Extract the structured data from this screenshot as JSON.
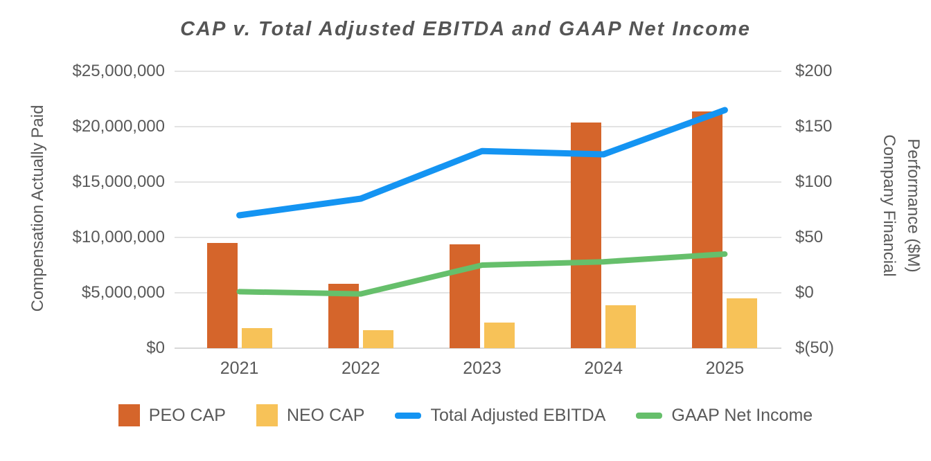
{
  "title": "CAP v. Total Adjusted EBITDA and GAAP Net Income",
  "colors": {
    "peo_bar": "#D5652B",
    "neo_bar": "#F7C258",
    "ebitda_line": "#1494F2",
    "gaap_line": "#66BF6B",
    "text": "#595959",
    "gridline": "#E3E3E3"
  },
  "chart_data": {
    "type": "combo-bar-line",
    "title": "CAP v. Total Adjusted EBITDA and GAAP Net Income",
    "categories": [
      "2021",
      "2022",
      "2023",
      "2024",
      "2025"
    ],
    "bar_series": [
      {
        "name": "PEO CAP",
        "axis": "left",
        "color": "#D5652B",
        "values": [
          9500000,
          5800000,
          9400000,
          20400000,
          21400000
        ]
      },
      {
        "name": "NEO CAP",
        "axis": "left",
        "color": "#F7C258",
        "values": [
          1800000,
          1600000,
          2300000,
          3900000,
          4500000
        ]
      }
    ],
    "line_series": [
      {
        "name": "Total Adjusted EBITDA",
        "axis": "right",
        "color": "#1494F2",
        "stroke_width": 9,
        "values": [
          70,
          85,
          128,
          125,
          165
        ]
      },
      {
        "name": "GAAP Net Income",
        "axis": "right",
        "color": "#66BF6B",
        "stroke_width": 8,
        "values": [
          1,
          -1,
          25,
          28,
          35
        ]
      }
    ],
    "left_axis": {
      "label": "Compensation Actually Paid",
      "min": 0,
      "max": 25000000,
      "tick_step": 5000000,
      "tick_labels": [
        "$25,000,000",
        "$20,000,000",
        "$15,000,000",
        "$10,000,000",
        "$5,000,000",
        "$0"
      ]
    },
    "right_axis": {
      "label": "Company Financial Performance ($M)",
      "label_lines": [
        "Company Financial",
        "Performance ($M)"
      ],
      "min": -50,
      "max": 200,
      "tick_step": 50,
      "tick_labels": [
        "$200",
        "$150",
        "$100",
        "$50",
        "$0",
        "$(50)"
      ]
    },
    "grid": true,
    "legend_position": "bottom"
  }
}
